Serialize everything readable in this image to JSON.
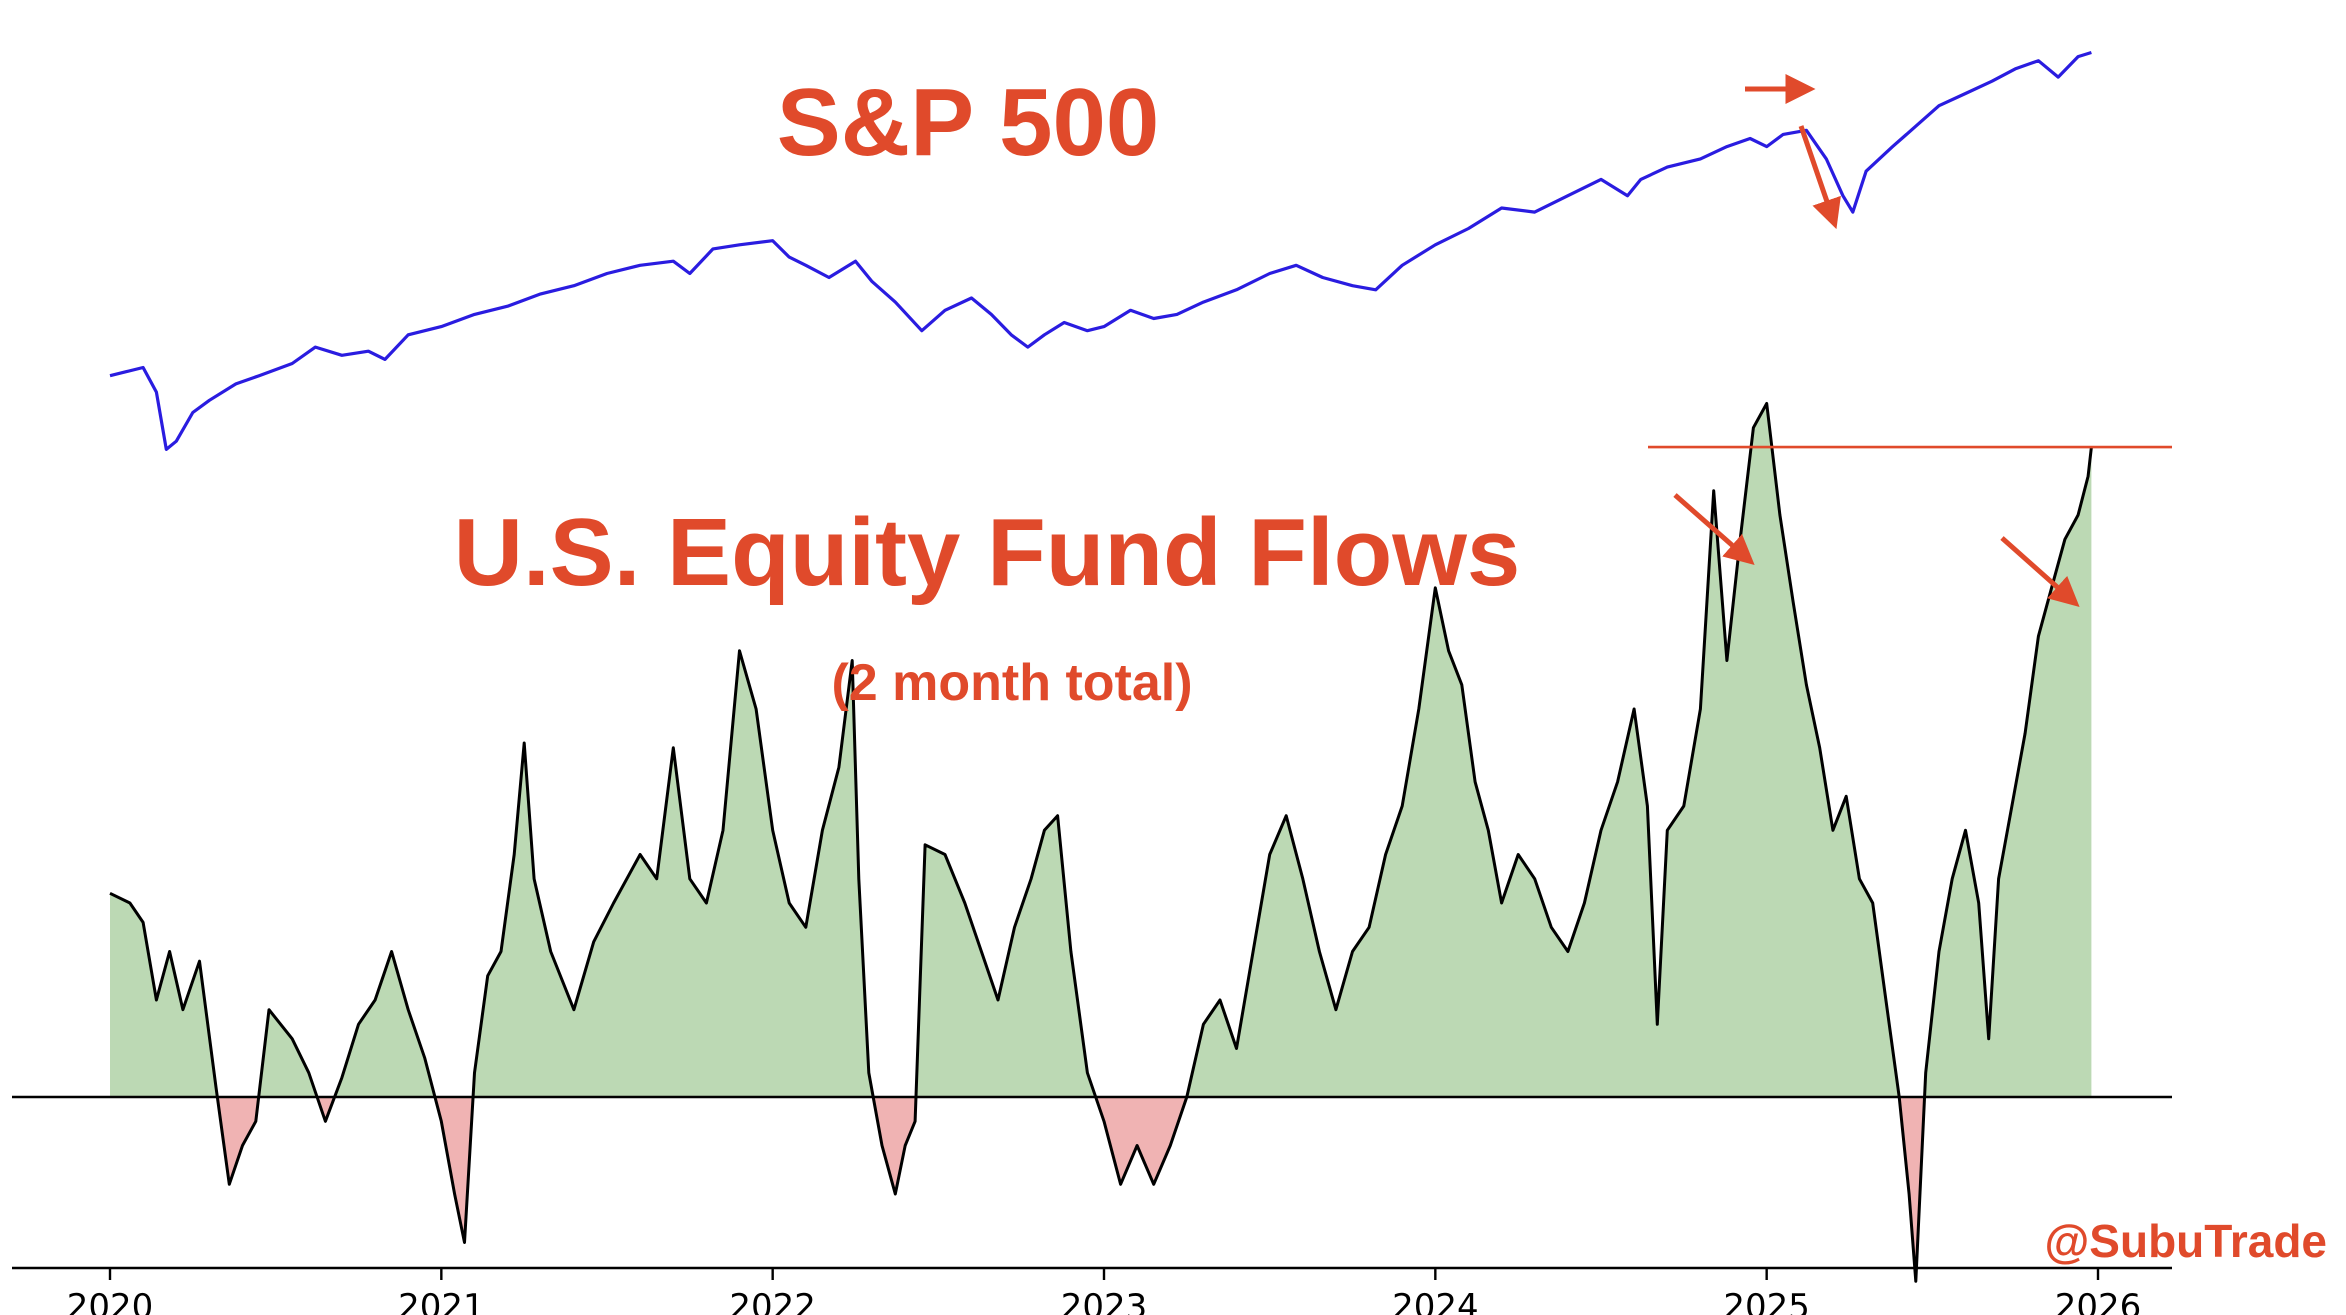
{
  "colors": {
    "accent": "#e04a2b",
    "sp500_line": "#2a1ce0",
    "flow_line": "#000000",
    "positive_fill": "#bcd9b4",
    "negative_fill": "#f0b3b3",
    "axis": "#000000",
    "background": "#ffffff"
  },
  "annotations": {
    "sp500_title": "S&P 500",
    "flows_title": "U.S. Equity Fund Flows",
    "flows_subtitle": "(2 month total)",
    "watermark": "@SubuTrade"
  },
  "chart_data": [
    {
      "type": "line",
      "title": "S&P 500",
      "unit": "relative level (no axis printed)",
      "xlim": [
        2020.0,
        2026.0
      ],
      "ylim": [
        -0.05,
        1.05
      ],
      "x_ticks_shared": true,
      "series": [
        {
          "name": "S&P 500",
          "color": "#2a1ce0",
          "points": [
            [
              2020.0,
              0.2
            ],
            [
              2020.05,
              0.21
            ],
            [
              2020.1,
              0.22
            ],
            [
              2020.14,
              0.16
            ],
            [
              2020.17,
              0.02
            ],
            [
              2020.2,
              0.04
            ],
            [
              2020.25,
              0.11
            ],
            [
              2020.3,
              0.14
            ],
            [
              2020.38,
              0.18
            ],
            [
              2020.45,
              0.2
            ],
            [
              2020.55,
              0.23
            ],
            [
              2020.62,
              0.27
            ],
            [
              2020.7,
              0.25
            ],
            [
              2020.78,
              0.26
            ],
            [
              2020.83,
              0.24
            ],
            [
              2020.9,
              0.3
            ],
            [
              2021.0,
              0.32
            ],
            [
              2021.1,
              0.35
            ],
            [
              2021.2,
              0.37
            ],
            [
              2021.3,
              0.4
            ],
            [
              2021.4,
              0.42
            ],
            [
              2021.5,
              0.45
            ],
            [
              2021.6,
              0.47
            ],
            [
              2021.7,
              0.48
            ],
            [
              2021.75,
              0.45
            ],
            [
              2021.82,
              0.51
            ],
            [
              2021.9,
              0.52
            ],
            [
              2022.0,
              0.53
            ],
            [
              2022.05,
              0.49
            ],
            [
              2022.1,
              0.47
            ],
            [
              2022.17,
              0.44
            ],
            [
              2022.25,
              0.48
            ],
            [
              2022.3,
              0.43
            ],
            [
              2022.37,
              0.38
            ],
            [
              2022.45,
              0.31
            ],
            [
              2022.52,
              0.36
            ],
            [
              2022.6,
              0.39
            ],
            [
              2022.66,
              0.35
            ],
            [
              2022.72,
              0.3
            ],
            [
              2022.77,
              0.27
            ],
            [
              2022.82,
              0.3
            ],
            [
              2022.88,
              0.33
            ],
            [
              2022.95,
              0.31
            ],
            [
              2023.0,
              0.32
            ],
            [
              2023.08,
              0.36
            ],
            [
              2023.15,
              0.34
            ],
            [
              2023.22,
              0.35
            ],
            [
              2023.3,
              0.38
            ],
            [
              2023.4,
              0.41
            ],
            [
              2023.5,
              0.45
            ],
            [
              2023.58,
              0.47
            ],
            [
              2023.66,
              0.44
            ],
            [
              2023.75,
              0.42
            ],
            [
              2023.82,
              0.41
            ],
            [
              2023.9,
              0.47
            ],
            [
              2024.0,
              0.52
            ],
            [
              2024.1,
              0.56
            ],
            [
              2024.2,
              0.61
            ],
            [
              2024.3,
              0.6
            ],
            [
              2024.4,
              0.64
            ],
            [
              2024.5,
              0.68
            ],
            [
              2024.58,
              0.64
            ],
            [
              2024.62,
              0.68
            ],
            [
              2024.7,
              0.71
            ],
            [
              2024.8,
              0.73
            ],
            [
              2024.88,
              0.76
            ],
            [
              2024.95,
              0.78
            ],
            [
              2025.0,
              0.76
            ],
            [
              2025.05,
              0.79
            ],
            [
              2025.12,
              0.8
            ],
            [
              2025.18,
              0.73
            ],
            [
              2025.23,
              0.64
            ],
            [
              2025.26,
              0.6
            ],
            [
              2025.3,
              0.7
            ],
            [
              2025.38,
              0.76
            ],
            [
              2025.45,
              0.81
            ],
            [
              2025.52,
              0.86
            ],
            [
              2025.6,
              0.89
            ],
            [
              2025.68,
              0.92
            ],
            [
              2025.75,
              0.95
            ],
            [
              2025.82,
              0.97
            ],
            [
              2025.88,
              0.93
            ],
            [
              2025.94,
              0.98
            ],
            [
              2025.98,
              0.99
            ]
          ]
        }
      ]
    },
    {
      "type": "area",
      "title": "U.S. Equity Fund Flows",
      "subtitle": "(2 month total)",
      "unit": "relative flow (no value axis printed)",
      "xlim": [
        2020.0,
        2026.0
      ],
      "ylim": [
        -0.45,
        1.55
      ],
      "baseline": 0,
      "reference_level": 1.34,
      "xticks": [
        "2020",
        "2021",
        "2022",
        "2023",
        "2024",
        "2025",
        "2026"
      ],
      "series": [
        {
          "name": "U.S. Equity Fund Flows",
          "line_color": "#000000",
          "positive_fill": "#bcd9b4",
          "negative_fill": "#f0b3b3",
          "points": [
            [
              2020.0,
              0.42
            ],
            [
              2020.06,
              0.4
            ],
            [
              2020.1,
              0.36
            ],
            [
              2020.14,
              0.2
            ],
            [
              2020.18,
              0.3
            ],
            [
              2020.22,
              0.18
            ],
            [
              2020.27,
              0.28
            ],
            [
              2020.32,
              0.02
            ],
            [
              2020.36,
              -0.18
            ],
            [
              2020.4,
              -0.1
            ],
            [
              2020.44,
              -0.05
            ],
            [
              2020.48,
              0.18
            ],
            [
              2020.55,
              0.12
            ],
            [
              2020.6,
              0.05
            ],
            [
              2020.65,
              -0.05
            ],
            [
              2020.7,
              0.04
            ],
            [
              2020.75,
              0.15
            ],
            [
              2020.8,
              0.2
            ],
            [
              2020.85,
              0.3
            ],
            [
              2020.9,
              0.18
            ],
            [
              2020.95,
              0.08
            ],
            [
              2021.0,
              -0.05
            ],
            [
              2021.04,
              -0.2
            ],
            [
              2021.07,
              -0.3
            ],
            [
              2021.1,
              0.05
            ],
            [
              2021.14,
              0.25
            ],
            [
              2021.18,
              0.3
            ],
            [
              2021.22,
              0.5
            ],
            [
              2021.25,
              0.73
            ],
            [
              2021.28,
              0.45
            ],
            [
              2021.33,
              0.3
            ],
            [
              2021.4,
              0.18
            ],
            [
              2021.46,
              0.32
            ],
            [
              2021.52,
              0.4
            ],
            [
              2021.6,
              0.5
            ],
            [
              2021.65,
              0.45
            ],
            [
              2021.7,
              0.72
            ],
            [
              2021.75,
              0.45
            ],
            [
              2021.8,
              0.4
            ],
            [
              2021.85,
              0.55
            ],
            [
              2021.9,
              0.92
            ],
            [
              2021.95,
              0.8
            ],
            [
              2022.0,
              0.55
            ],
            [
              2022.05,
              0.4
            ],
            [
              2022.1,
              0.35
            ],
            [
              2022.15,
              0.55
            ],
            [
              2022.2,
              0.68
            ],
            [
              2022.24,
              0.9
            ],
            [
              2022.26,
              0.45
            ],
            [
              2022.29,
              0.05
            ],
            [
              2022.33,
              -0.1
            ],
            [
              2022.37,
              -0.2
            ],
            [
              2022.4,
              -0.1
            ],
            [
              2022.43,
              -0.05
            ],
            [
              2022.46,
              0.52
            ],
            [
              2022.52,
              0.5
            ],
            [
              2022.58,
              0.4
            ],
            [
              2022.63,
              0.3
            ],
            [
              2022.68,
              0.2
            ],
            [
              2022.73,
              0.35
            ],
            [
              2022.78,
              0.45
            ],
            [
              2022.82,
              0.55
            ],
            [
              2022.86,
              0.58
            ],
            [
              2022.9,
              0.3
            ],
            [
              2022.95,
              0.05
            ],
            [
              2023.0,
              -0.05
            ],
            [
              2023.05,
              -0.18
            ],
            [
              2023.1,
              -0.1
            ],
            [
              2023.15,
              -0.18
            ],
            [
              2023.2,
              -0.1
            ],
            [
              2023.25,
              0.0
            ],
            [
              2023.3,
              0.15
            ],
            [
              2023.35,
              0.2
            ],
            [
              2023.4,
              0.1
            ],
            [
              2023.45,
              0.3
            ],
            [
              2023.5,
              0.5
            ],
            [
              2023.55,
              0.58
            ],
            [
              2023.6,
              0.45
            ],
            [
              2023.65,
              0.3
            ],
            [
              2023.7,
              0.18
            ],
            [
              2023.75,
              0.3
            ],
            [
              2023.8,
              0.35
            ],
            [
              2023.85,
              0.5
            ],
            [
              2023.9,
              0.6
            ],
            [
              2023.95,
              0.8
            ],
            [
              2024.0,
              1.05
            ],
            [
              2024.04,
              0.92
            ],
            [
              2024.08,
              0.85
            ],
            [
              2024.12,
              0.65
            ],
            [
              2024.16,
              0.55
            ],
            [
              2024.2,
              0.4
            ],
            [
              2024.25,
              0.5
            ],
            [
              2024.3,
              0.45
            ],
            [
              2024.35,
              0.35
            ],
            [
              2024.4,
              0.3
            ],
            [
              2024.45,
              0.4
            ],
            [
              2024.5,
              0.55
            ],
            [
              2024.55,
              0.65
            ],
            [
              2024.6,
              0.8
            ],
            [
              2024.64,
              0.6
            ],
            [
              2024.67,
              0.15
            ],
            [
              2024.7,
              0.55
            ],
            [
              2024.75,
              0.6
            ],
            [
              2024.8,
              0.8
            ],
            [
              2024.84,
              1.25
            ],
            [
              2024.88,
              0.9
            ],
            [
              2024.92,
              1.15
            ],
            [
              2024.96,
              1.38
            ],
            [
              2025.0,
              1.43
            ],
            [
              2025.04,
              1.2
            ],
            [
              2025.08,
              1.02
            ],
            [
              2025.12,
              0.85
            ],
            [
              2025.16,
              0.72
            ],
            [
              2025.2,
              0.55
            ],
            [
              2025.24,
              0.62
            ],
            [
              2025.28,
              0.45
            ],
            [
              2025.32,
              0.4
            ],
            [
              2025.36,
              0.2
            ],
            [
              2025.4,
              0.0
            ],
            [
              2025.43,
              -0.2
            ],
            [
              2025.45,
              -0.38
            ],
            [
              2025.48,
              0.05
            ],
            [
              2025.52,
              0.3
            ],
            [
              2025.56,
              0.45
            ],
            [
              2025.6,
              0.55
            ],
            [
              2025.64,
              0.4
            ],
            [
              2025.67,
              0.12
            ],
            [
              2025.7,
              0.45
            ],
            [
              2025.74,
              0.6
            ],
            [
              2025.78,
              0.75
            ],
            [
              2025.82,
              0.95
            ],
            [
              2025.86,
              1.05
            ],
            [
              2025.9,
              1.15
            ],
            [
              2025.94,
              1.2
            ],
            [
              2025.97,
              1.28
            ],
            [
              2025.98,
              1.34
            ]
          ]
        }
      ]
    }
  ]
}
